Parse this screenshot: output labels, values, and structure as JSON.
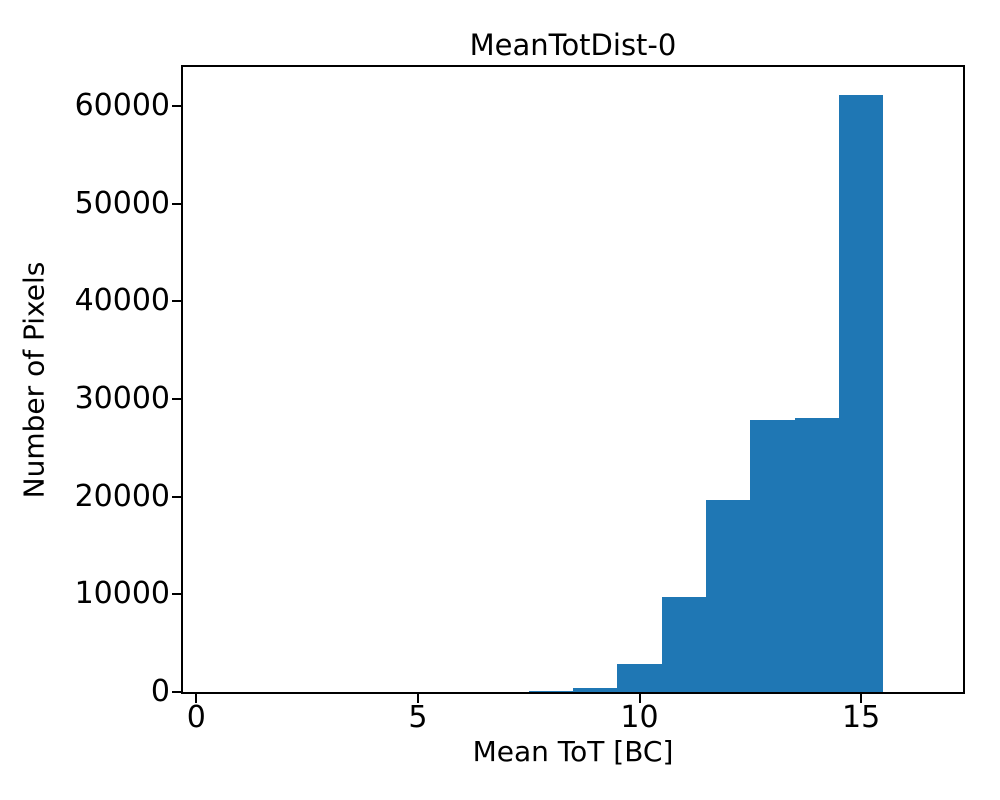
{
  "chart_data": {
    "type": "bar",
    "subtype": "histogram",
    "title": "MeanTotDist-0",
    "xlabel": "Mean ToT [BC]",
    "ylabel": "Number of Pixels",
    "bar_color": "#1f77b4",
    "bin_edges": [
      7.5,
      8.5,
      9.5,
      10.5,
      11.5,
      12.5,
      13.5,
      14.5,
      15.5
    ],
    "counts": [
      150,
      450,
      2900,
      9700,
      19700,
      27900,
      28100,
      61100
    ],
    "xticks": [
      0,
      5,
      10,
      15
    ],
    "yticks": [
      0,
      10000,
      20000,
      30000,
      40000,
      50000,
      60000
    ],
    "xlim": [
      -0.3,
      17.3
    ],
    "ylim": [
      0,
      64000
    ],
    "grid": false,
    "legend_position": "none"
  }
}
